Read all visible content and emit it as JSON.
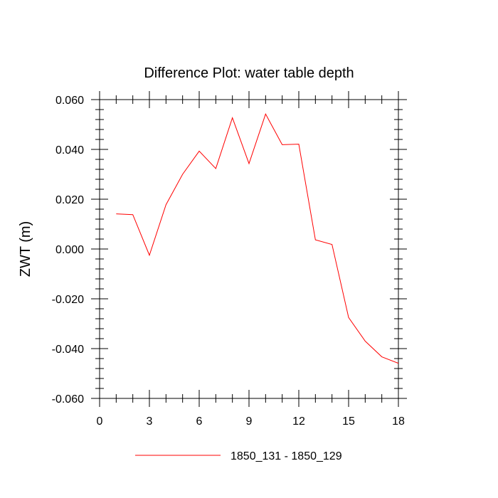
{
  "chart_data": {
    "type": "line",
    "title": "Difference Plot: water table depth",
    "xlabel": "",
    "ylabel": "ZWT  (m)",
    "xlim": [
      0,
      18
    ],
    "ylim": [
      -0.06,
      0.06
    ],
    "x_ticks": [
      0,
      3,
      6,
      9,
      12,
      15,
      18
    ],
    "x_tick_labels": [
      "0",
      "3",
      "6",
      "9",
      "12",
      "15",
      "18"
    ],
    "y_ticks": [
      -0.06,
      -0.04,
      -0.02,
      0.0,
      0.02,
      0.04,
      0.06
    ],
    "y_tick_labels": [
      "-0.060",
      "-0.040",
      "-0.020",
      "0.000",
      "0.020",
      "0.040",
      "0.060"
    ],
    "x_minor_step": 1,
    "y_minor_step": 0.004,
    "grid": false,
    "legend_position": "bottom-center",
    "series": [
      {
        "name": "1850_131 - 1850_129",
        "color": "#ff0000",
        "x": [
          1,
          2,
          3,
          4,
          5,
          6,
          7,
          8,
          9,
          10,
          11,
          12,
          13,
          14,
          15,
          16,
          17,
          18
        ],
        "values": [
          0.0141,
          0.0138,
          -0.0025,
          0.0178,
          0.03,
          0.0393,
          0.0323,
          0.0527,
          0.0343,
          0.0542,
          0.0419,
          0.0421,
          0.0037,
          0.0018,
          -0.0275,
          -0.037,
          -0.0433,
          -0.0459
        ]
      }
    ]
  }
}
